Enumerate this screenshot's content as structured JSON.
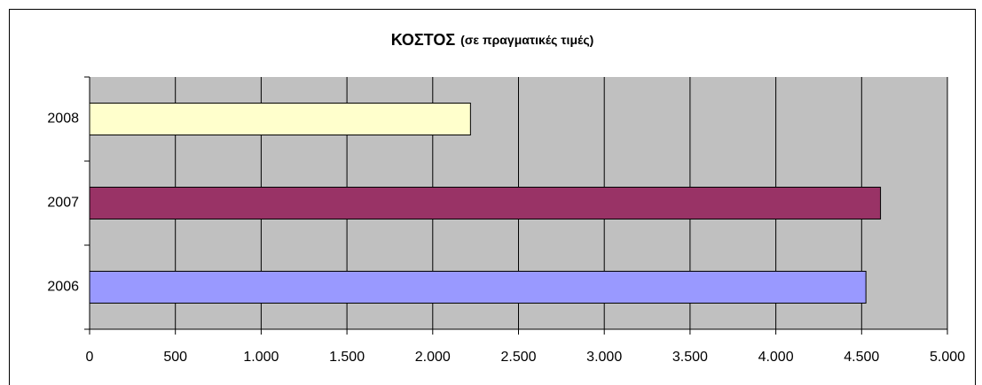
{
  "chart_data": {
    "type": "barh",
    "title": "ΚΟΣΤΟΣ",
    "subtitle": "(σε πραγματικές τιμές)",
    "categories": [
      "2006",
      "2007",
      "2008"
    ],
    "values": [
      4525,
      4610,
      2220
    ],
    "colors": [
      "#9999ff",
      "#993366",
      "#ffffcc"
    ],
    "xlim": [
      0,
      5000
    ],
    "xticks": [
      0,
      500,
      {
        "value": 1000,
        "label": "1.000"
      },
      {
        "value": 1500,
        "label": "1.500"
      },
      {
        "value": 2000,
        "label": "2.000"
      },
      {
        "value": 2500,
        "label": "2.500"
      },
      {
        "value": 3000,
        "label": "3.000"
      },
      {
        "value": 3500,
        "label": "3.500"
      },
      {
        "value": 4000,
        "label": "4.000"
      },
      {
        "value": 4500,
        "label": "4.500"
      },
      {
        "value": 5000,
        "label": "5.000"
      }
    ],
    "grid": true,
    "plot_background": "#c0c0c0"
  }
}
